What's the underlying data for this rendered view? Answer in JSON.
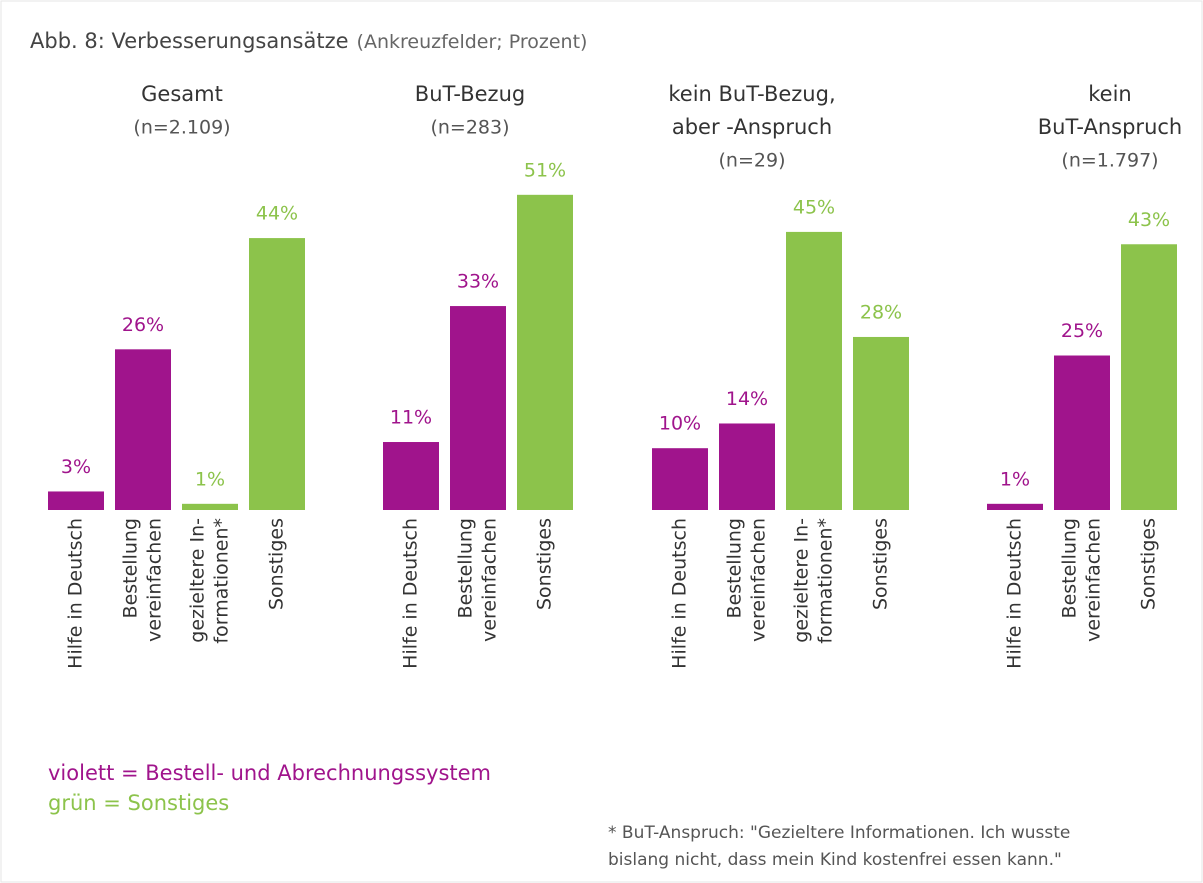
{
  "title": "Abb. 8: Verbesserungsansätze",
  "title_note": "(Ankreuzfelder; Prozent)",
  "legend": [
    "violett = Bestell- und Abrechnungssystem",
    "grün = Sonstiges"
  ],
  "legend_colors": [
    "#a0148c",
    "#8cc34b"
  ],
  "footnote": [
    "* BuT-Anspruch: \"Gezieltere Informationen. Ich wusste",
    "bislang nicht, dass mein Kind kostenfrei essen kann.\""
  ],
  "chart_data": [
    {
      "type": "bar",
      "title": [
        "Gesamt"
      ],
      "subtitle": "(n=2.109)",
      "categories": [
        [
          "Hilfe in Deutsch"
        ],
        [
          "Bestellung",
          "vereinfachen"
        ],
        [
          "gezieltere In-",
          "formationen*"
        ],
        [
          "Sonstiges"
        ]
      ],
      "values": [
        3,
        26,
        1,
        44
      ],
      "value_labels": [
        "3%",
        "26%",
        "1%",
        "44%"
      ],
      "colors": [
        "#a0148c",
        "#a0148c",
        "#8cc34b",
        "#8cc34b"
      ]
    },
    {
      "type": "bar",
      "title": [
        "BuT-Bezug"
      ],
      "subtitle": "(n=283)",
      "categories": [
        [
          "Hilfe in Deutsch"
        ],
        [
          "Bestellung",
          "vereinfachen"
        ],
        [
          "Sonstiges"
        ]
      ],
      "values": [
        11,
        33,
        51
      ],
      "value_labels": [
        "11%",
        "33%",
        "51%"
      ],
      "colors": [
        "#a0148c",
        "#a0148c",
        "#8cc34b"
      ]
    },
    {
      "type": "bar",
      "title": [
        "kein BuT-Bezug,",
        "aber -Anspruch"
      ],
      "subtitle": "(n=29)",
      "categories": [
        [
          "Hilfe in Deutsch"
        ],
        [
          "Bestellung",
          "vereinfachen"
        ],
        [
          "gezieltere In-",
          "formationen*"
        ],
        [
          "Sonstiges"
        ]
      ],
      "values": [
        10,
        14,
        45,
        28
      ],
      "value_labels": [
        "10%",
        "14%",
        "45%",
        "28%"
      ],
      "colors": [
        "#a0148c",
        "#a0148c",
        "#8cc34b",
        "#8cc34b"
      ]
    },
    {
      "type": "bar",
      "title": [
        "kein",
        "BuT-Anspruch"
      ],
      "subtitle": "(n=1.797)",
      "categories": [
        [
          "Hilfe in Deutsch"
        ],
        [
          "Bestellung",
          "vereinfachen"
        ],
        [
          "Sonstiges"
        ]
      ],
      "values": [
        1,
        25,
        43
      ],
      "value_labels": [
        "1%",
        "25%",
        "43%"
      ],
      "colors": [
        "#a0148c",
        "#a0148c",
        "#8cc34b"
      ]
    }
  ]
}
